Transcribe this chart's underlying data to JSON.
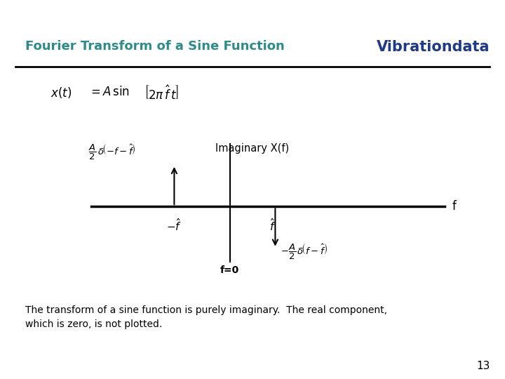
{
  "title": "Fourier Transform of a Sine Function",
  "title_color": "#2E8B8B",
  "brand": "Vibrationdata",
  "brand_color": "#1F3A8A",
  "background_color": "#FFFFFF",
  "axis_label_y": "Imaginary X(f)",
  "axis_label_f": "f",
  "label_f0": "f=0",
  "footer_text": "The transform of a sine function is purely imaginary.  The real component,\nwhich is zero, is not plotted.",
  "page_number": "13",
  "title_fontsize": 13,
  "brand_fontsize": 15
}
